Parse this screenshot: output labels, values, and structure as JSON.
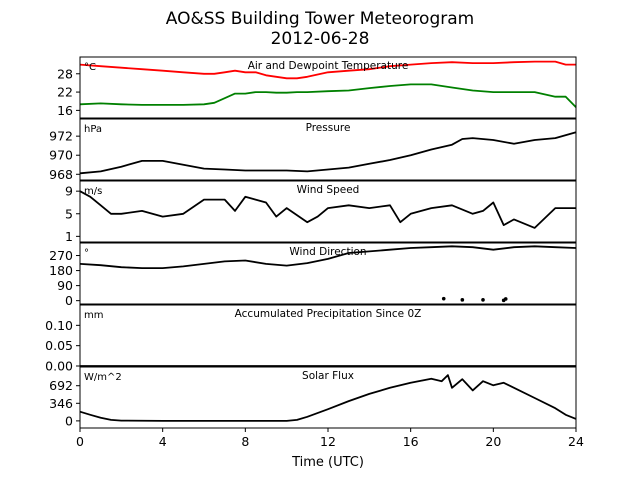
{
  "title": "AO&SS Building Tower Meteorogram",
  "date": "2012-06-28",
  "xlabel": "Time (UTC)",
  "x_ticks": [
    "0",
    "4",
    "8",
    "12",
    "16",
    "20",
    "24"
  ],
  "chart_data": [
    {
      "type": "line",
      "title": "Air and Dewpoint Temperature",
      "unit": "°C",
      "ylim": [
        13.5,
        33.5
      ],
      "yticks": [
        16,
        22,
        28
      ],
      "x": [
        0,
        1,
        2,
        3,
        4,
        5,
        6,
        6.5,
        7,
        7.5,
        8,
        8.5,
        9,
        9.5,
        10,
        10.5,
        11,
        12,
        13,
        14,
        15,
        16,
        17,
        18,
        19,
        20,
        21,
        22,
        23,
        23.5,
        24
      ],
      "series": [
        {
          "name": "",
          "color": "#ff0000",
          "values": [
            31,
            30.5,
            30,
            29.5,
            29,
            28.5,
            28,
            28,
            28.5,
            29,
            28.5,
            28.5,
            27.5,
            27,
            26.5,
            26.5,
            27,
            28.5,
            29,
            29.5,
            30.5,
            31,
            31.5,
            31.8,
            31.5,
            31.5,
            31.8,
            32,
            32,
            31,
            31
          ]
        },
        {
          "name": "",
          "color": "#008000",
          "values": [
            18,
            18.3,
            18,
            17.8,
            17.8,
            17.8,
            18,
            18.5,
            20,
            21.5,
            21.5,
            22,
            22,
            21.8,
            21.8,
            22,
            22,
            22.3,
            22.5,
            23.3,
            24,
            24.5,
            24.5,
            23.5,
            22.5,
            22,
            22,
            22,
            20.5,
            20.5,
            17
          ]
        }
      ]
    },
    {
      "type": "line",
      "title": "Pressure",
      "unit": "hPa",
      "ylim": [
        967.4,
        973.8
      ],
      "yticks": [
        968,
        970,
        972
      ],
      "x": [
        0,
        1,
        2,
        3,
        3.5,
        4,
        5,
        6,
        7,
        8,
        9,
        10,
        11,
        12,
        13,
        14,
        15,
        16,
        17,
        18,
        18.5,
        19,
        20,
        21,
        22,
        23,
        24
      ],
      "series": [
        {
          "name": "",
          "color": "#000000",
          "values": [
            968.1,
            968.3,
            968.8,
            969.4,
            969.4,
            969.4,
            969.0,
            968.6,
            968.5,
            968.4,
            968.4,
            968.4,
            968.3,
            968.5,
            968.7,
            969.1,
            969.5,
            970.0,
            970.6,
            971.1,
            971.7,
            971.8,
            971.6,
            971.2,
            971.6,
            971.8,
            972.4
          ]
        }
      ]
    },
    {
      "type": "line",
      "title": "Wind Speed",
      "unit": "m/s",
      "ylim": [
        0,
        10.8
      ],
      "yticks": [
        1,
        5,
        9
      ],
      "x": [
        0,
        0.5,
        1,
        1.5,
        2,
        3,
        4,
        5,
        6,
        7,
        7.5,
        8,
        9,
        9.5,
        10,
        11,
        11.5,
        12,
        13,
        14,
        15,
        15.5,
        16,
        17,
        18,
        19,
        19.5,
        20,
        20.5,
        21,
        22,
        23,
        24
      ],
      "series": [
        {
          "name": "",
          "color": "#000000",
          "values": [
            9,
            8,
            6.5,
            5,
            5,
            5.5,
            4.5,
            5,
            7.5,
            7.5,
            5.5,
            8,
            7,
            4.5,
            6,
            3.5,
            4.5,
            6,
            6.5,
            6,
            6.5,
            3.5,
            5,
            6,
            6.5,
            5,
            5.5,
            7,
            3,
            4,
            2.5,
            6,
            6
          ]
        }
      ]
    },
    {
      "type": "line",
      "title": "Wind Direction",
      "unit": "°",
      "ylim": [
        -20,
        345
      ],
      "yticks": [
        0,
        90,
        180,
        270
      ],
      "x": [
        0,
        1,
        2,
        3,
        4,
        5,
        6,
        7,
        8,
        9,
        10,
        11,
        12,
        13,
        14,
        15,
        16,
        17,
        18,
        19,
        20,
        21,
        22,
        23,
        24
      ],
      "series": [
        {
          "name": "",
          "color": "#000000",
          "values": [
            220,
            212,
            200,
            195,
            195,
            205,
            220,
            235,
            240,
            220,
            210,
            225,
            250,
            285,
            295,
            305,
            315,
            320,
            325,
            320,
            305,
            320,
            325,
            320,
            315
          ]
        }
      ],
      "outliers": {
        "x": [
          17.6,
          18.5,
          19.5,
          20.5,
          20.6
        ],
        "y": [
          12,
          5,
          5,
          2,
          10
        ]
      }
    },
    {
      "type": "line",
      "title": "Accumulated Precipitation Since 0Z",
      "unit": "mm",
      "ylim": [
        0,
        0.15
      ],
      "yticks": [
        0.0,
        0.05,
        0.1
      ],
      "ytick_labels": [
        "0.00",
        "0.05",
        "0.10"
      ],
      "x": [
        0,
        24
      ],
      "series": [
        {
          "name": "",
          "color": "#000000",
          "values": [
            0,
            0
          ]
        }
      ]
    },
    {
      "type": "line",
      "title": "Solar Flux",
      "unit": "W/m^2",
      "ylim": [
        -140,
        1060
      ],
      "yticks": [
        0,
        346,
        692
      ],
      "x": [
        0,
        0.5,
        1,
        1.5,
        2,
        4,
        6,
        8,
        10,
        10.5,
        11,
        12,
        13,
        14,
        15,
        16,
        17,
        17.5,
        17.8,
        18,
        18.5,
        19,
        19.5,
        20,
        20.5,
        21,
        22,
        23,
        23.5,
        24
      ],
      "series": [
        {
          "name": "",
          "color": "#000000",
          "values": [
            180,
            120,
            60,
            20,
            5,
            0,
            0,
            0,
            0,
            20,
            80,
            230,
            390,
            530,
            650,
            750,
            830,
            780,
            900,
            650,
            820,
            600,
            780,
            700,
            750,
            650,
            450,
            250,
            120,
            40
          ]
        }
      ]
    }
  ]
}
